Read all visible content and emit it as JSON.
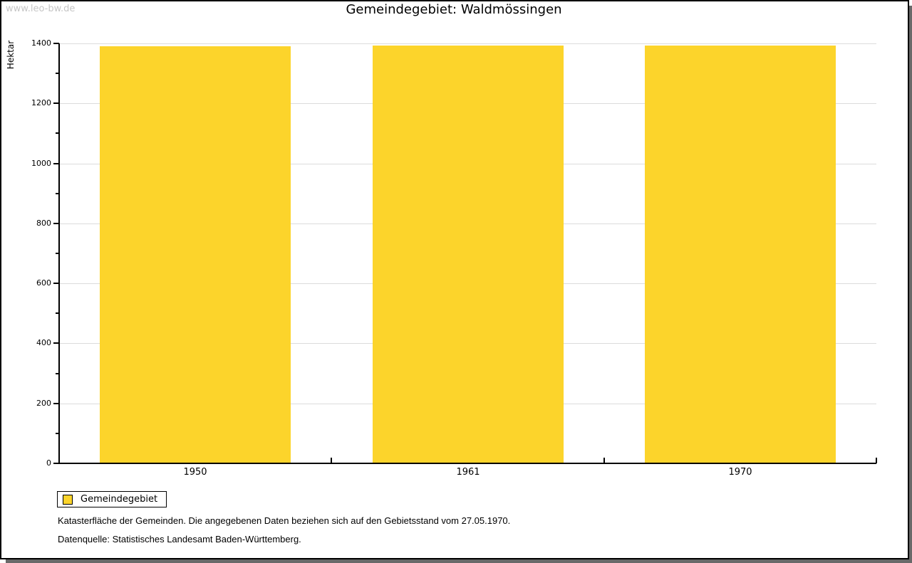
{
  "page": {
    "watermark": "www.leo-bw.de",
    "title": "Gemeindegebiet: Waldmössingen"
  },
  "chart_data": {
    "type": "bar",
    "title": "Gemeindegebiet: Waldmössingen",
    "categories": [
      "1950",
      "1961",
      "1970"
    ],
    "series": [
      {
        "name": "Gemeindegebiet",
        "values": [
          1390,
          1392,
          1392
        ]
      }
    ],
    "xlabel": "",
    "ylabel": "Hektar",
    "ylim": [
      0,
      1400
    ],
    "ytick_step": 200,
    "minor_tick_step": 100,
    "grid": "horizontal-major-only",
    "bar_color": "#FCD42B",
    "gridline_color": "#dcdcdc",
    "axis_color": "#000000",
    "legend_position": "bottom-left"
  },
  "legend": {
    "items": [
      {
        "label": "Gemeindegebiet",
        "color": "#FCD42B"
      }
    ]
  },
  "footer": {
    "line1": "Katasterfläche der Gemeinden. Die angegebenen Daten beziehen sich auf den Gebietsstand vom 27.05.1970.",
    "line2": "Datenquelle: Statistisches Landesamt Baden-Württemberg."
  }
}
